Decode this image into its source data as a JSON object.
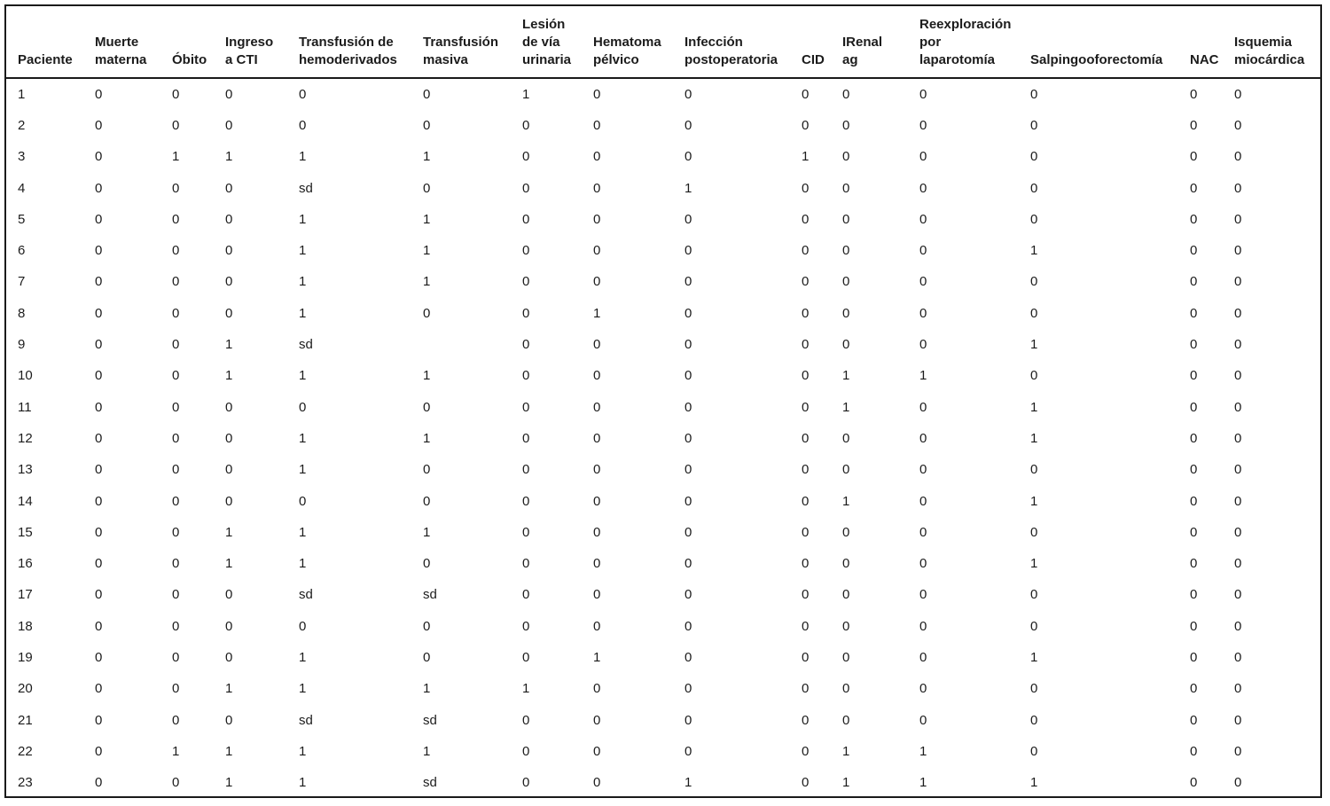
{
  "table": {
    "headers": [
      {
        "id": "paciente",
        "label": "Paciente",
        "lines": [
          "Paciente"
        ]
      },
      {
        "id": "muerte-materna",
        "label": "Muerte materna",
        "lines": [
          "Muerte",
          "materna"
        ]
      },
      {
        "id": "obito",
        "label": "Óbito",
        "lines": [
          "Óbito"
        ]
      },
      {
        "id": "ingreso-cti",
        "label": "Ingreso a CTI",
        "lines": [
          "Ingreso",
          "a CTI"
        ]
      },
      {
        "id": "transfusion-hemoderivados",
        "label": "Transfusión de hemoderivados",
        "lines": [
          "Transfusión de",
          "hemoderivados"
        ]
      },
      {
        "id": "transfusion-masiva",
        "label": "Transfusión masiva",
        "lines": [
          "Transfusión",
          "masiva"
        ]
      },
      {
        "id": "lesion-via-urinaria",
        "label": "Lesión de vía urinaria",
        "lines": [
          "Lesión",
          "de vía",
          "urinaria"
        ]
      },
      {
        "id": "hematoma-pelvico",
        "label": "Hematoma pélvico",
        "lines": [
          "Hematoma",
          "pélvico"
        ]
      },
      {
        "id": "infeccion-postoperatoria",
        "label": "Infección postoperatoria",
        "lines": [
          "Infección",
          "postoperatoria"
        ]
      },
      {
        "id": "cid",
        "label": "CID",
        "lines": [
          "CID"
        ]
      },
      {
        "id": "irenal-ag",
        "label": "IRenal ag",
        "lines": [
          "IRenal",
          "ag"
        ]
      },
      {
        "id": "reexploracion-laparotomia",
        "label": "Reexploración por laparotomía",
        "lines": [
          "Reexploración",
          "por",
          "laparotomía"
        ]
      },
      {
        "id": "salpingooforectomia",
        "label": "Salpingooforectomía",
        "lines": [
          "Salpingooforectomía"
        ]
      },
      {
        "id": "nac",
        "label": "NAC",
        "lines": [
          "NAC"
        ]
      },
      {
        "id": "isquemia-miocardica",
        "label": "Isquemia miocárdica",
        "lines": [
          "Isquemia",
          "miocárdica"
        ]
      }
    ],
    "rows": [
      [
        "1",
        "0",
        "0",
        "0",
        "0",
        "0",
        "1",
        "0",
        "0",
        "0",
        "0",
        "0",
        "0",
        "0",
        "0"
      ],
      [
        "2",
        "0",
        "0",
        "0",
        "0",
        "0",
        "0",
        "0",
        "0",
        "0",
        "0",
        "0",
        "0",
        "0",
        "0"
      ],
      [
        "3",
        "0",
        "1",
        "1",
        "1",
        "1",
        "0",
        "0",
        "0",
        "1",
        "0",
        "0",
        "0",
        "0",
        "0"
      ],
      [
        "4",
        "0",
        "0",
        "0",
        "sd",
        "0",
        "0",
        "0",
        "1",
        "0",
        "0",
        "0",
        "0",
        "0",
        "0"
      ],
      [
        "5",
        "0",
        "0",
        "0",
        "1",
        "1",
        "0",
        "0",
        "0",
        "0",
        "0",
        "0",
        "0",
        "0",
        "0"
      ],
      [
        "6",
        "0",
        "0",
        "0",
        "1",
        "1",
        "0",
        "0",
        "0",
        "0",
        "0",
        "0",
        "1",
        "0",
        "0"
      ],
      [
        "7",
        "0",
        "0",
        "0",
        "1",
        "1",
        "0",
        "0",
        "0",
        "0",
        "0",
        "0",
        "0",
        "0",
        "0"
      ],
      [
        "8",
        "0",
        "0",
        "0",
        "1",
        "0",
        "0",
        "1",
        "0",
        "0",
        "0",
        "0",
        "0",
        "0",
        "0"
      ],
      [
        "9",
        "0",
        "0",
        "1",
        "sd",
        "",
        "0",
        "0",
        "0",
        "0",
        "0",
        "0",
        "1",
        "0",
        "0"
      ],
      [
        "10",
        "0",
        "0",
        "1",
        "1",
        "1",
        "0",
        "0",
        "0",
        "0",
        "1",
        "1",
        "0",
        "0",
        "0"
      ],
      [
        "11",
        "0",
        "0",
        "0",
        "0",
        "0",
        "0",
        "0",
        "0",
        "0",
        "1",
        "0",
        "1",
        "0",
        "0"
      ],
      [
        "12",
        "0",
        "0",
        "0",
        "1",
        "1",
        "0",
        "0",
        "0",
        "0",
        "0",
        "0",
        "1",
        "0",
        "0"
      ],
      [
        "13",
        "0",
        "0",
        "0",
        "1",
        "0",
        "0",
        "0",
        "0",
        "0",
        "0",
        "0",
        "0",
        "0",
        "0"
      ],
      [
        "14",
        "0",
        "0",
        "0",
        "0",
        "0",
        "0",
        "0",
        "0",
        "0",
        "1",
        "0",
        "1",
        "0",
        "0"
      ],
      [
        "15",
        "0",
        "0",
        "1",
        "1",
        "1",
        "0",
        "0",
        "0",
        "0",
        "0",
        "0",
        "0",
        "0",
        "0"
      ],
      [
        "16",
        "0",
        "0",
        "1",
        "1",
        "0",
        "0",
        "0",
        "0",
        "0",
        "0",
        "0",
        "1",
        "0",
        "0"
      ],
      [
        "17",
        "0",
        "0",
        "0",
        "sd",
        "sd",
        "0",
        "0",
        "0",
        "0",
        "0",
        "0",
        "0",
        "0",
        "0"
      ],
      [
        "18",
        "0",
        "0",
        "0",
        "0",
        "0",
        "0",
        "0",
        "0",
        "0",
        "0",
        "0",
        "0",
        "0",
        "0"
      ],
      [
        "19",
        "0",
        "0",
        "0",
        "1",
        "0",
        "0",
        "1",
        "0",
        "0",
        "0",
        "0",
        "1",
        "0",
        "0"
      ],
      [
        "20",
        "0",
        "0",
        "1",
        "1",
        "1",
        "1",
        "0",
        "0",
        "0",
        "0",
        "0",
        "0",
        "0",
        "0"
      ],
      [
        "21",
        "0",
        "0",
        "0",
        "sd",
        "sd",
        "0",
        "0",
        "0",
        "0",
        "0",
        "0",
        "0",
        "0",
        "0"
      ],
      [
        "22",
        "0",
        "1",
        "1",
        "1",
        "1",
        "0",
        "0",
        "0",
        "0",
        "1",
        "1",
        "0",
        "0",
        "0"
      ],
      [
        "23",
        "0",
        "0",
        "1",
        "1",
        "sd",
        "0",
        "0",
        "1",
        "0",
        "1",
        "1",
        "1",
        "0",
        "0"
      ]
    ]
  },
  "colors": {
    "border": "#1a1a1a",
    "text": "#1c1c1c",
    "background": "#ffffff"
  }
}
